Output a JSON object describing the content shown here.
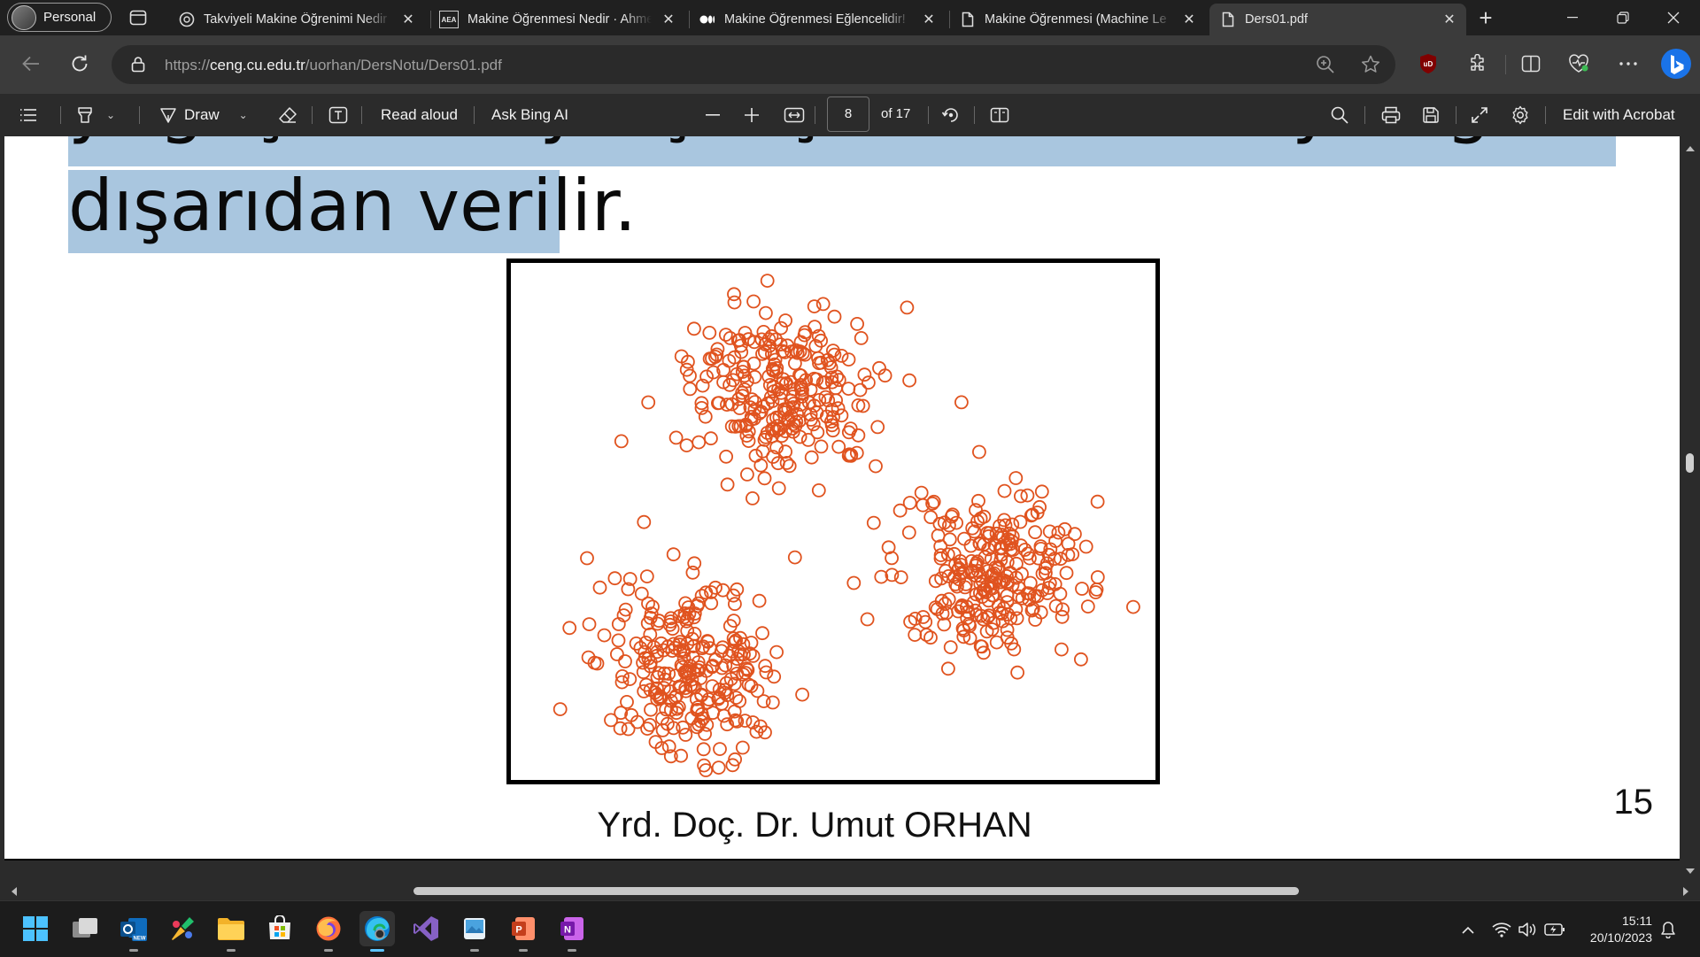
{
  "browser": {
    "profile_label": "Personal",
    "tabs": [
      {
        "title": "Takviyeli Makine Öğrenimi Nedir",
        "favicon": "chatgpt-icon"
      },
      {
        "title": "Makine Öğrenmesi Nedir · Ahmet",
        "favicon": "aea-icon",
        "favicon_text": "AEA"
      },
      {
        "title": "Makine Öğrenmesi Eğlencelidir!",
        "favicon": "medium-icon"
      },
      {
        "title": "Makine Öğrenmesi (Machine Le",
        "favicon": "page-icon"
      },
      {
        "title": "Ders01.pdf",
        "favicon": "page-icon",
        "active": true
      }
    ],
    "address": {
      "prefix": "https://",
      "domain": "ceng.cu.edu.tr",
      "path": "/uorhan/DersNotu/Ders01.pdf"
    }
  },
  "pdf_toolbar": {
    "draw_label": "Draw",
    "read_aloud_label": "Read aloud",
    "ask_bing_label": "Ask Bing AI",
    "page_current": "8",
    "page_of": "of 17",
    "edit_acrobat_label": "Edit with Acrobat"
  },
  "document": {
    "line1": "yeğeştirilmeye çalışılır. Küme sayısı genellikle",
    "line2_highlighted": "dışarıdan verilir",
    "line2_tail": ".",
    "footer_name": "Yrd. Doç. Dr. Umut ORHAN",
    "page_number": "15",
    "scatter": {
      "marker": "open-circle",
      "color": "#e0531f",
      "clusters": [
        {
          "center": [
            0.42,
            0.25
          ],
          "points": 260
        },
        {
          "center": [
            0.28,
            0.78
          ],
          "points": 260
        },
        {
          "center": [
            0.74,
            0.6
          ],
          "points": 260
        }
      ]
    }
  },
  "taskbar": {
    "apps": [
      "windows-start-icon",
      "task-view-icon",
      "outlook-icon",
      "paint-icon",
      "file-explorer-icon",
      "microsoft-store-icon",
      "firefox-icon",
      "edge-icon",
      "visual-studio-icon",
      "photos-icon",
      "powerpoint-icon",
      "onenote-icon"
    ],
    "time": "15:11",
    "date": "20/10/2023"
  }
}
